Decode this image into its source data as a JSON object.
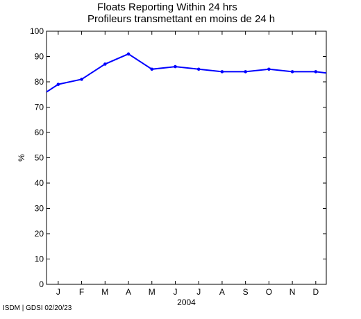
{
  "chart_data": {
    "type": "line",
    "title": "Floats Reporting Within 24 hrs",
    "subtitle": "Profileurs transmettant en moins de 24 h",
    "xlabel": "2004",
    "ylabel": "%",
    "ylim": [
      0,
      100
    ],
    "yticks": [
      0,
      10,
      20,
      30,
      40,
      50,
      60,
      70,
      80,
      90,
      100
    ],
    "categories": [
      "J",
      "F",
      "M",
      "A",
      "M",
      "J",
      "J",
      "A",
      "S",
      "O",
      "N",
      "D"
    ],
    "xlim": [
      0.5,
      12.45
    ],
    "series": [
      {
        "color": "#0000ff",
        "x": [
          0.5,
          1,
          2,
          3,
          4,
          5,
          6,
          7,
          8,
          9,
          10,
          11,
          12,
          12.45
        ],
        "values": [
          76,
          79,
          81,
          87,
          91,
          85,
          86,
          85,
          84,
          84,
          85,
          84,
          84,
          83.5
        ]
      }
    ]
  },
  "footer": "ISDM | GDSI 02/20/23"
}
